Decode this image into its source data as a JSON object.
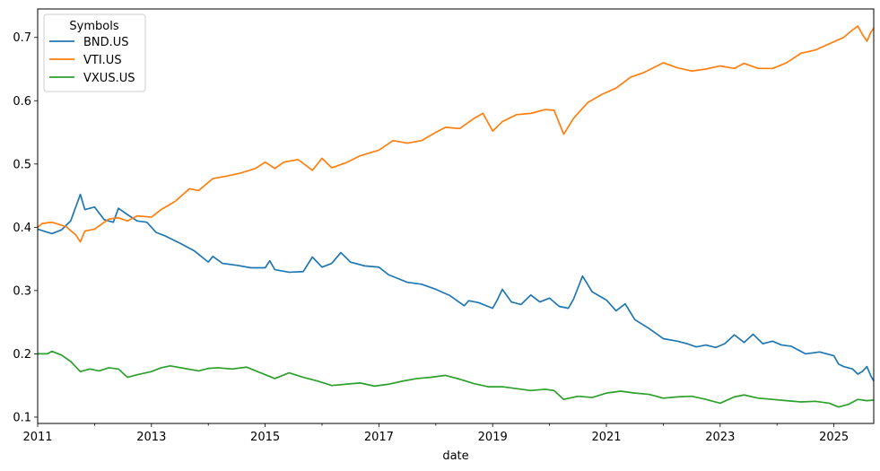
{
  "chart_data": {
    "type": "line",
    "xlabel": "date",
    "ylabel": "",
    "xlim": [
      2011.0,
      2025.7
    ],
    "ylim": [
      0.09,
      0.745
    ],
    "x_ticks": [
      2011,
      2013,
      2015,
      2017,
      2019,
      2021,
      2023,
      2025
    ],
    "x_tick_labels": [
      "2011",
      "2013",
      "2015",
      "2017",
      "2019",
      "2021",
      "2023",
      "2025"
    ],
    "y_ticks": [
      0.1,
      0.2,
      0.3,
      0.4,
      0.5,
      0.6,
      0.7
    ],
    "y_tick_labels": [
      "0.1",
      "0.2",
      "0.3",
      "0.4",
      "0.5",
      "0.6",
      "0.7"
    ],
    "grid": false,
    "legend": {
      "title": "Symbols",
      "placement": "top-left"
    },
    "series": [
      {
        "name": "BND.US",
        "color": "#1f77b4",
        "points": [
          [
            2011.0,
            0.397
          ],
          [
            2011.25,
            0.39
          ],
          [
            2011.42,
            0.396
          ],
          [
            2011.58,
            0.41
          ],
          [
            2011.75,
            0.452
          ],
          [
            2011.83,
            0.428
          ],
          [
            2012.0,
            0.432
          ],
          [
            2012.17,
            0.412
          ],
          [
            2012.33,
            0.408
          ],
          [
            2012.42,
            0.43
          ],
          [
            2012.58,
            0.42
          ],
          [
            2012.75,
            0.41
          ],
          [
            2012.92,
            0.408
          ],
          [
            2013.08,
            0.392
          ],
          [
            2013.25,
            0.386
          ],
          [
            2013.5,
            0.375
          ],
          [
            2013.75,
            0.363
          ],
          [
            2014.0,
            0.345
          ],
          [
            2014.08,
            0.354
          ],
          [
            2014.25,
            0.343
          ],
          [
            2014.5,
            0.34
          ],
          [
            2014.75,
            0.336
          ],
          [
            2015.0,
            0.336
          ],
          [
            2015.08,
            0.347
          ],
          [
            2015.17,
            0.333
          ],
          [
            2015.42,
            0.329
          ],
          [
            2015.67,
            0.33
          ],
          [
            2015.83,
            0.353
          ],
          [
            2016.0,
            0.337
          ],
          [
            2016.17,
            0.343
          ],
          [
            2016.33,
            0.36
          ],
          [
            2016.5,
            0.345
          ],
          [
            2016.75,
            0.339
          ],
          [
            2017.0,
            0.337
          ],
          [
            2017.17,
            0.325
          ],
          [
            2017.5,
            0.313
          ],
          [
            2017.75,
            0.31
          ],
          [
            2018.0,
            0.302
          ],
          [
            2018.25,
            0.292
          ],
          [
            2018.5,
            0.276
          ],
          [
            2018.58,
            0.284
          ],
          [
            2018.75,
            0.281
          ],
          [
            2019.0,
            0.272
          ],
          [
            2019.08,
            0.285
          ],
          [
            2019.17,
            0.302
          ],
          [
            2019.33,
            0.282
          ],
          [
            2019.5,
            0.278
          ],
          [
            2019.67,
            0.293
          ],
          [
            2019.83,
            0.282
          ],
          [
            2020.0,
            0.288
          ],
          [
            2020.17,
            0.275
          ],
          [
            2020.33,
            0.272
          ],
          [
            2020.42,
            0.286
          ],
          [
            2020.58,
            0.323
          ],
          [
            2020.75,
            0.298
          ],
          [
            2021.0,
            0.285
          ],
          [
            2021.17,
            0.268
          ],
          [
            2021.33,
            0.279
          ],
          [
            2021.5,
            0.254
          ],
          [
            2021.75,
            0.24
          ],
          [
            2022.0,
            0.224
          ],
          [
            2022.25,
            0.22
          ],
          [
            2022.42,
            0.216
          ],
          [
            2022.58,
            0.211
          ],
          [
            2022.75,
            0.214
          ],
          [
            2022.92,
            0.21
          ],
          [
            2023.08,
            0.216
          ],
          [
            2023.25,
            0.23
          ],
          [
            2023.42,
            0.218
          ],
          [
            2023.58,
            0.231
          ],
          [
            2023.75,
            0.216
          ],
          [
            2023.92,
            0.22
          ],
          [
            2024.08,
            0.214
          ],
          [
            2024.25,
            0.212
          ],
          [
            2024.5,
            0.2
          ],
          [
            2024.75,
            0.203
          ],
          [
            2025.0,
            0.197
          ],
          [
            2025.08,
            0.184
          ],
          [
            2025.17,
            0.18
          ],
          [
            2025.33,
            0.176
          ],
          [
            2025.42,
            0.168
          ],
          [
            2025.5,
            0.172
          ],
          [
            2025.58,
            0.18
          ],
          [
            2025.65,
            0.165
          ],
          [
            2025.7,
            0.157
          ]
        ]
      },
      {
        "name": "VTI.US",
        "color": "#ff7f0e",
        "points": [
          [
            2011.0,
            0.4
          ],
          [
            2011.08,
            0.406
          ],
          [
            2011.25,
            0.408
          ],
          [
            2011.5,
            0.401
          ],
          [
            2011.67,
            0.388
          ],
          [
            2011.75,
            0.377
          ],
          [
            2011.83,
            0.394
          ],
          [
            2012.0,
            0.397
          ],
          [
            2012.25,
            0.413
          ],
          [
            2012.42,
            0.415
          ],
          [
            2012.58,
            0.41
          ],
          [
            2012.75,
            0.418
          ],
          [
            2013.0,
            0.416
          ],
          [
            2013.17,
            0.428
          ],
          [
            2013.42,
            0.441
          ],
          [
            2013.67,
            0.461
          ],
          [
            2013.83,
            0.458
          ],
          [
            2014.08,
            0.477
          ],
          [
            2014.33,
            0.481
          ],
          [
            2014.58,
            0.486
          ],
          [
            2014.83,
            0.493
          ],
          [
            2015.0,
            0.503
          ],
          [
            2015.17,
            0.493
          ],
          [
            2015.33,
            0.503
          ],
          [
            2015.58,
            0.507
          ],
          [
            2015.83,
            0.49
          ],
          [
            2016.0,
            0.509
          ],
          [
            2016.17,
            0.494
          ],
          [
            2016.42,
            0.502
          ],
          [
            2016.67,
            0.513
          ],
          [
            2017.0,
            0.522
          ],
          [
            2017.25,
            0.537
          ],
          [
            2017.5,
            0.533
          ],
          [
            2017.75,
            0.537
          ],
          [
            2018.0,
            0.55
          ],
          [
            2018.17,
            0.558
          ],
          [
            2018.42,
            0.556
          ],
          [
            2018.67,
            0.572
          ],
          [
            2018.83,
            0.58
          ],
          [
            2019.0,
            0.552
          ],
          [
            2019.17,
            0.567
          ],
          [
            2019.42,
            0.578
          ],
          [
            2019.67,
            0.58
          ],
          [
            2019.92,
            0.586
          ],
          [
            2020.08,
            0.585
          ],
          [
            2020.25,
            0.547
          ],
          [
            2020.42,
            0.572
          ],
          [
            2020.67,
            0.597
          ],
          [
            2020.92,
            0.61
          ],
          [
            2021.17,
            0.62
          ],
          [
            2021.42,
            0.637
          ],
          [
            2021.67,
            0.645
          ],
          [
            2022.0,
            0.66
          ],
          [
            2022.25,
            0.652
          ],
          [
            2022.5,
            0.647
          ],
          [
            2022.75,
            0.65
          ],
          [
            2023.0,
            0.655
          ],
          [
            2023.25,
            0.651
          ],
          [
            2023.42,
            0.659
          ],
          [
            2023.67,
            0.651
          ],
          [
            2023.92,
            0.651
          ],
          [
            2024.17,
            0.66
          ],
          [
            2024.42,
            0.675
          ],
          [
            2024.67,
            0.68
          ],
          [
            2024.92,
            0.69
          ],
          [
            2025.17,
            0.7
          ],
          [
            2025.33,
            0.712
          ],
          [
            2025.42,
            0.718
          ],
          [
            2025.5,
            0.705
          ],
          [
            2025.58,
            0.694
          ],
          [
            2025.65,
            0.708
          ],
          [
            2025.7,
            0.715
          ]
        ]
      },
      {
        "name": "VXUS.US",
        "color": "#2ca02c",
        "points": [
          [
            2011.0,
            0.2
          ],
          [
            2011.17,
            0.2
          ],
          [
            2011.25,
            0.204
          ],
          [
            2011.42,
            0.198
          ],
          [
            2011.58,
            0.188
          ],
          [
            2011.75,
            0.172
          ],
          [
            2011.92,
            0.176
          ],
          [
            2012.08,
            0.173
          ],
          [
            2012.25,
            0.178
          ],
          [
            2012.42,
            0.176
          ],
          [
            2012.58,
            0.163
          ],
          [
            2012.75,
            0.167
          ],
          [
            2013.0,
            0.172
          ],
          [
            2013.17,
            0.178
          ],
          [
            2013.33,
            0.181
          ],
          [
            2013.58,
            0.177
          ],
          [
            2013.83,
            0.173
          ],
          [
            2014.0,
            0.177
          ],
          [
            2014.17,
            0.178
          ],
          [
            2014.42,
            0.176
          ],
          [
            2014.67,
            0.179
          ],
          [
            2014.92,
            0.17
          ],
          [
            2015.17,
            0.161
          ],
          [
            2015.42,
            0.17
          ],
          [
            2015.67,
            0.163
          ],
          [
            2015.92,
            0.157
          ],
          [
            2016.17,
            0.15
          ],
          [
            2016.42,
            0.152
          ],
          [
            2016.67,
            0.154
          ],
          [
            2016.92,
            0.149
          ],
          [
            2017.17,
            0.152
          ],
          [
            2017.42,
            0.157
          ],
          [
            2017.67,
            0.161
          ],
          [
            2017.92,
            0.163
          ],
          [
            2018.17,
            0.166
          ],
          [
            2018.42,
            0.16
          ],
          [
            2018.67,
            0.153
          ],
          [
            2018.92,
            0.148
          ],
          [
            2019.17,
            0.148
          ],
          [
            2019.42,
            0.145
          ],
          [
            2019.67,
            0.142
          ],
          [
            2019.92,
            0.144
          ],
          [
            2020.08,
            0.142
          ],
          [
            2020.25,
            0.128
          ],
          [
            2020.5,
            0.133
          ],
          [
            2020.75,
            0.131
          ],
          [
            2021.0,
            0.138
          ],
          [
            2021.25,
            0.141
          ],
          [
            2021.5,
            0.138
          ],
          [
            2021.75,
            0.136
          ],
          [
            2022.0,
            0.13
          ],
          [
            2022.25,
            0.132
          ],
          [
            2022.5,
            0.133
          ],
          [
            2022.75,
            0.128
          ],
          [
            2023.0,
            0.122
          ],
          [
            2023.25,
            0.132
          ],
          [
            2023.42,
            0.135
          ],
          [
            2023.67,
            0.13
          ],
          [
            2023.92,
            0.128
          ],
          [
            2024.17,
            0.126
          ],
          [
            2024.42,
            0.124
          ],
          [
            2024.67,
            0.125
          ],
          [
            2024.92,
            0.122
          ],
          [
            2025.08,
            0.116
          ],
          [
            2025.25,
            0.12
          ],
          [
            2025.42,
            0.128
          ],
          [
            2025.58,
            0.126
          ],
          [
            2025.7,
            0.127
          ]
        ]
      }
    ]
  }
}
